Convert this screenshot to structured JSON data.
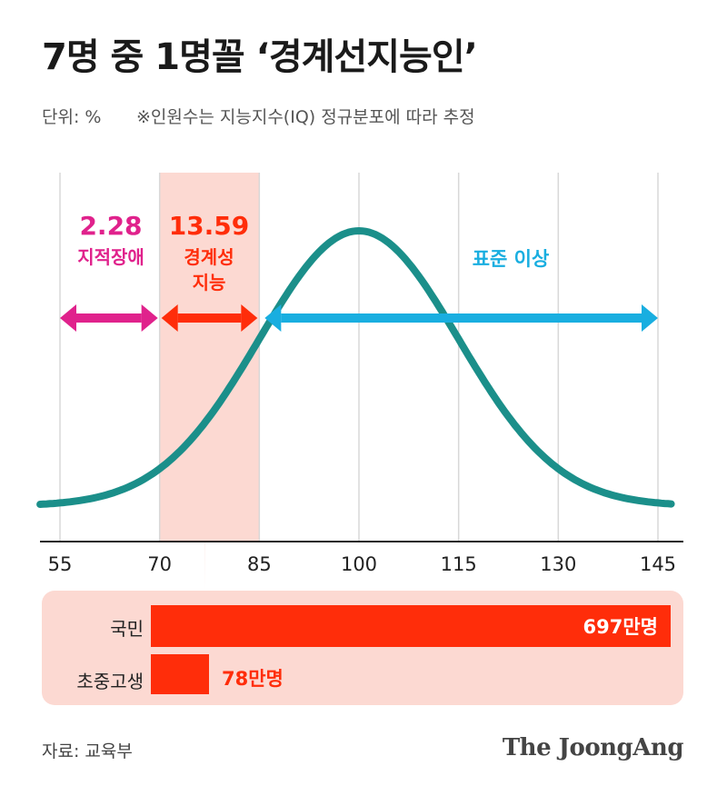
{
  "title": "7명 중 1명꼴 ‘경계선지능인’",
  "unit_note": "단위: %",
  "footnote": "※인원수는 지능지수(IQ) 정규분포에 따라 추정",
  "source": "자료: 교육부",
  "brand": "The JoongAng",
  "colors": {
    "curve": "#1b8f8a",
    "intellectual_disability": "#e0228c",
    "borderline": "#ff2d0a",
    "above_standard": "#19aee0",
    "band": "#fcd9d2",
    "bar": "#ff2d0a"
  },
  "chart_data": {
    "type": "area",
    "xlabel": "",
    "ylabel": "",
    "x_ticks": [
      55,
      70,
      85,
      100,
      115,
      130,
      145
    ],
    "xlim": [
      55,
      145
    ],
    "distribution": {
      "mean": 100,
      "sd": 15
    },
    "grid": true,
    "regions": [
      {
        "label": "지적장애",
        "value": "2.28",
        "from": 55,
        "to": 70
      },
      {
        "label": "경계성\n지능",
        "value": "13.59",
        "from": 70,
        "to": 85
      },
      {
        "label": "표준 이상",
        "value": "",
        "from": 85,
        "to": 145
      }
    ],
    "region_labels": {
      "disability_value": "2.28",
      "disability_name": "지적장애",
      "borderline_value": "13.59",
      "borderline_name_1": "경계성",
      "borderline_name_2": "지능",
      "standard_name": "표준 이상"
    }
  },
  "bars": {
    "type": "bar",
    "unit": "만명",
    "items": [
      {
        "label": "국민",
        "value": 697,
        "display": "697만명"
      },
      {
        "label": "초중고생",
        "value": 78,
        "display": "78만명"
      }
    ]
  }
}
